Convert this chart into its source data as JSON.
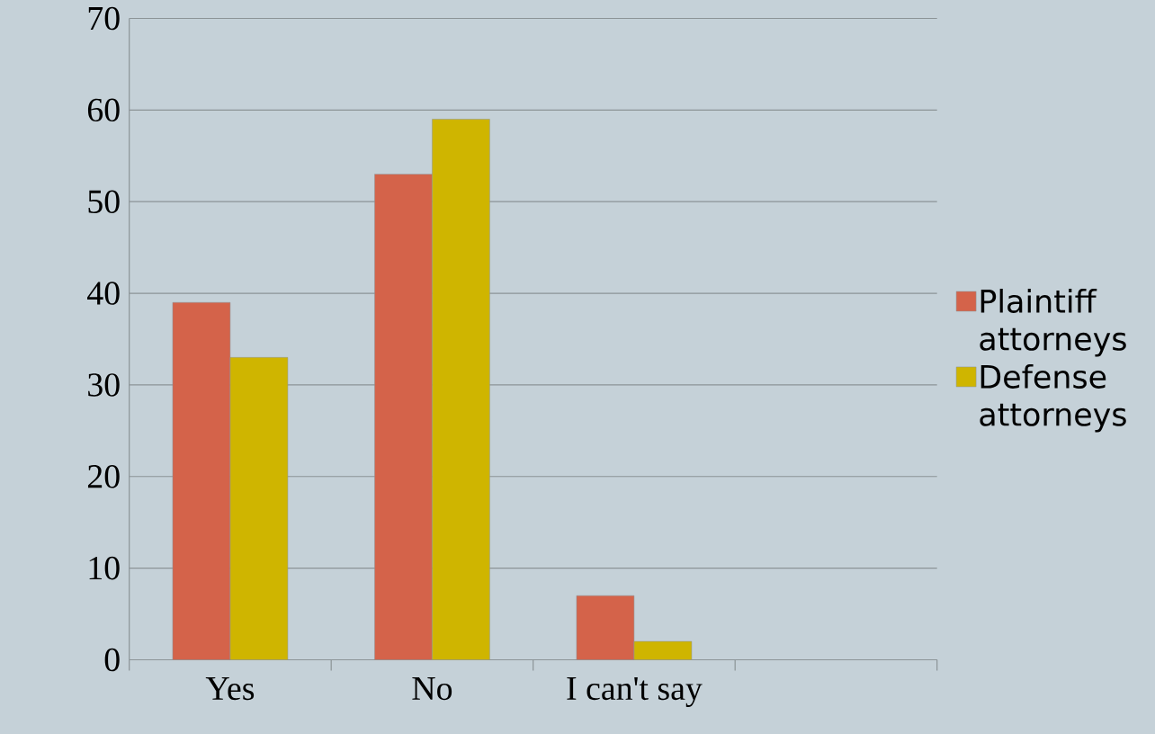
{
  "chart_data": {
    "type": "bar",
    "categories": [
      "Yes",
      "No",
      "I can't say",
      null
    ],
    "series": [
      {
        "name": "Plaintiff attorneys",
        "color": "#d4634a",
        "values": [
          39,
          53,
          7,
          null
        ]
      },
      {
        "name": "Defense attorneys",
        "color": "#cfb500",
        "values": [
          33,
          59,
          2,
          null
        ]
      }
    ],
    "ylim": [
      0,
      70
    ],
    "yticks": [
      0,
      10,
      20,
      30,
      40,
      50,
      60,
      70
    ],
    "grid": "y",
    "legend": "right"
  }
}
